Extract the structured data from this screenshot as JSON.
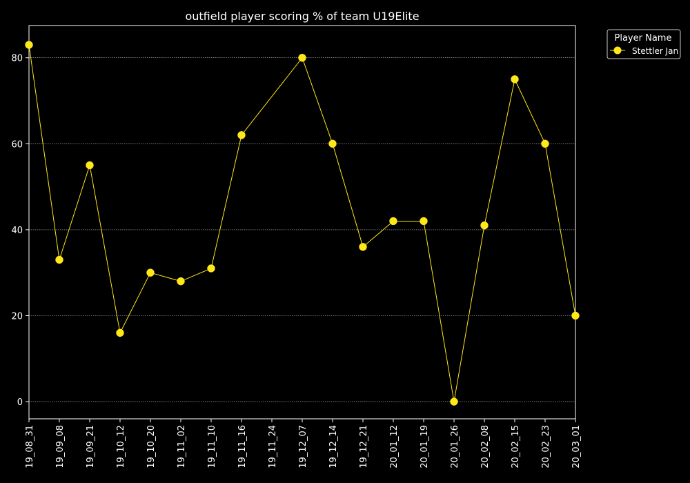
{
  "chart_data": {
    "type": "line",
    "title": "outfield player scoring % of team U19Elite",
    "xlabel": "",
    "ylabel": "",
    "categories": [
      "19_08_31",
      "19_09_08",
      "19_09_21",
      "19_10_12",
      "19_10_20",
      "19_11_02",
      "19_11_10",
      "19_11_16",
      "19_11_24",
      "19_12_07",
      "19_12_14",
      "19_12_21",
      "20_01_12",
      "20_01_19",
      "20_01_26",
      "20_02_08",
      "20_02_15",
      "20_02_23",
      "20_03_01"
    ],
    "series": [
      {
        "name": "Stettler Jan",
        "color": "#ffe81a",
        "values": [
          83,
          33,
          55,
          16,
          30,
          28,
          31,
          62,
          null,
          80,
          60,
          36,
          42,
          42,
          0,
          41,
          75,
          60,
          20
        ]
      }
    ],
    "ylim": [
      -4,
      87.5
    ],
    "yticks": [
      0,
      20,
      40,
      60,
      80
    ],
    "grid": true,
    "legend": {
      "title": "Player Name",
      "placement": "top-right-outside"
    },
    "colors": {
      "background": "#000000",
      "axes": "#ffffff",
      "grid": "#ffffff"
    }
  }
}
